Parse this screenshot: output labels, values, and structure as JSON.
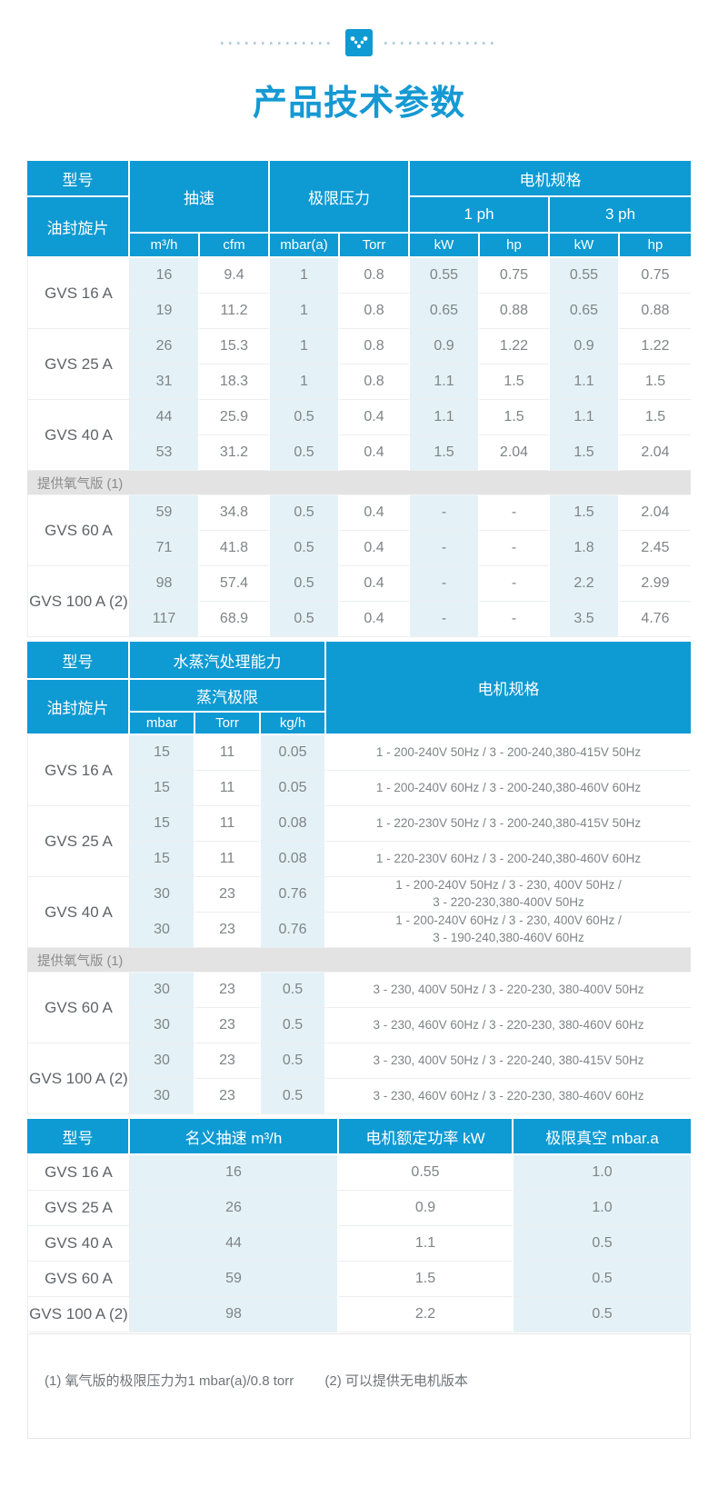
{
  "page": {
    "title": "产品技术参数"
  },
  "colors": {
    "header_blue": "#0e9ad3",
    "cell_light_blue": "#e4f2f8",
    "note_row_gray": "#e3e3e3",
    "title_blue": "#1599d3"
  },
  "table1": {
    "header": {
      "model_top": "型号",
      "model_bottom": "油封旋片",
      "speed": "抽速",
      "pressure": "极限压力",
      "motor": "电机规格",
      "ph1": "1 ph",
      "ph3": "3 ph",
      "units": [
        "m³/h",
        "cfm",
        "mbar(a)",
        "Torr",
        "kW",
        "hp",
        "kW",
        "hp"
      ]
    },
    "groups": [
      {
        "model": "GVS 16 A",
        "rows": [
          [
            "16",
            "9.4",
            "1",
            "0.8",
            "0.55",
            "0.75",
            "0.55",
            "0.75"
          ],
          [
            "19",
            "11.2",
            "1",
            "0.8",
            "0.65",
            "0.88",
            "0.65",
            "0.88"
          ]
        ]
      },
      {
        "model": "GVS 25 A",
        "rows": [
          [
            "26",
            "15.3",
            "1",
            "0.8",
            "0.9",
            "1.22",
            "0.9",
            "1.22"
          ],
          [
            "31",
            "18.3",
            "1",
            "0.8",
            "1.1",
            "1.5",
            "1.1",
            "1.5"
          ]
        ]
      },
      {
        "model": "GVS 40 A",
        "rows": [
          [
            "44",
            "25.9",
            "0.5",
            "0.4",
            "1.1",
            "1.5",
            "1.1",
            "1.5"
          ],
          [
            "53",
            "31.2",
            "0.5",
            "0.4",
            "1.5",
            "2.04",
            "1.5",
            "2.04"
          ]
        ]
      },
      {
        "note": "提供氧气版 (1)"
      },
      {
        "model": "GVS 60 A",
        "rows": [
          [
            "59",
            "34.8",
            "0.5",
            "0.4",
            "-",
            "-",
            "1.5",
            "2.04"
          ],
          [
            "71",
            "41.8",
            "0.5",
            "0.4",
            "-",
            "-",
            "1.8",
            "2.45"
          ]
        ]
      },
      {
        "model": "GVS 100 A (2)",
        "rows": [
          [
            "98",
            "57.4",
            "0.5",
            "0.4",
            "-",
            "-",
            "2.2",
            "2.99"
          ],
          [
            "117",
            "68.9",
            "0.5",
            "0.4",
            "-",
            "-",
            "3.5",
            "4.76"
          ]
        ]
      }
    ]
  },
  "table2": {
    "header": {
      "model_top": "型号",
      "model_bottom": "油封旋片",
      "water": "水蒸汽处理能力",
      "vapor": "蒸汽极限",
      "motor": "电机规格",
      "units": [
        "mbar",
        "Torr",
        "kg/h"
      ]
    },
    "groups": [
      {
        "model": "GVS 16 A",
        "rows": [
          [
            "15",
            "11",
            "0.05",
            "1 - 200-240V 50Hz / 3 - 200-240,380-415V 50Hz"
          ],
          [
            "15",
            "11",
            "0.05",
            "1 - 200-240V 60Hz / 3 - 200-240,380-460V 60Hz"
          ]
        ]
      },
      {
        "model": "GVS 25 A",
        "rows": [
          [
            "15",
            "11",
            "0.08",
            "1 - 220-230V 50Hz / 3 - 200-240,380-415V 50Hz"
          ],
          [
            "15",
            "11",
            "0.08",
            "1 - 220-230V 60Hz / 3 - 200-240,380-460V 60Hz"
          ]
        ]
      },
      {
        "model": "GVS 40 A",
        "rows": [
          [
            "30",
            "23",
            "0.76",
            "1 - 200-240V 50Hz / 3 - 230, 400V 50Hz /\n3 - 220-230,380-400V 50Hz"
          ],
          [
            "30",
            "23",
            "0.76",
            "1 - 200-240V 60Hz / 3 - 230, 400V 60Hz /\n3 - 190-240,380-460V 60Hz"
          ]
        ]
      },
      {
        "note": "提供氧气版 (1)"
      },
      {
        "model": "GVS 60 A",
        "rows": [
          [
            "30",
            "23",
            "0.5",
            "3 - 230, 400V 50Hz / 3 - 220-230, 380-400V 50Hz"
          ],
          [
            "30",
            "23",
            "0.5",
            "3 - 230, 460V 60Hz / 3 - 220-230, 380-460V 60Hz"
          ]
        ]
      },
      {
        "model": "GVS 100 A (2)",
        "rows": [
          [
            "30",
            "23",
            "0.5",
            "3 - 230, 400V 50Hz / 3 - 220-240, 380-415V 50Hz"
          ],
          [
            "30",
            "23",
            "0.5",
            "3 - 230, 460V 60Hz / 3 - 220-230, 380-460V 60Hz"
          ]
        ]
      }
    ]
  },
  "table3": {
    "headers": [
      "型号",
      "名义抽速 m³/h",
      "电机额定功率 kW",
      "极限真空 mbar.a"
    ],
    "rows": [
      [
        "GVS 16 A",
        "16",
        "0.55",
        "1.0"
      ],
      [
        "GVS 25 A",
        "26",
        "0.9",
        "1.0"
      ],
      [
        "GVS 40 A",
        "44",
        "1.1",
        "0.5"
      ],
      [
        "GVS 60 A",
        "59",
        "1.5",
        "0.5"
      ],
      [
        "GVS 100 A (2)",
        "98",
        "2.2",
        "0.5"
      ]
    ]
  },
  "footnotes": {
    "note1": "(1) 氧气版的极限压力为1 mbar(a)/0.8 torr",
    "note2": "(2) 可以提供无电机版本"
  }
}
